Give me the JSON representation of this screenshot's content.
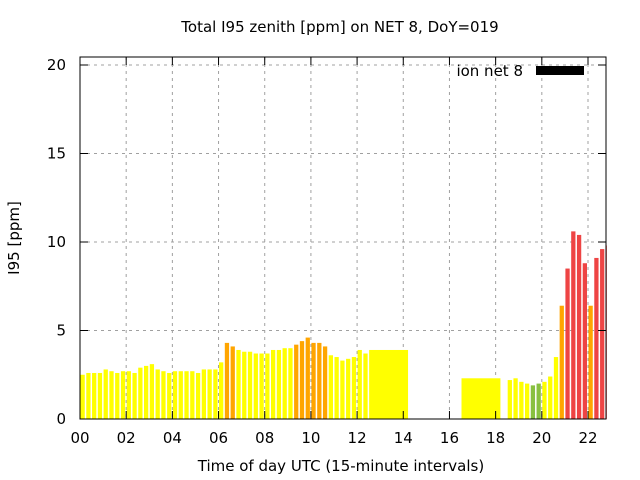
{
  "chart_data": {
    "type": "bar",
    "title": "Total I95 zenith [ppm] on NET 8, DoY=019",
    "xlabel": "Time of day UTC (15-minute intervals)",
    "ylabel": "I95 [ppm]",
    "xlim": [
      0,
      22.75
    ],
    "ylim": [
      0,
      20.5
    ],
    "xticks": [
      "00",
      "02",
      "04",
      "06",
      "08",
      "10",
      "12",
      "14",
      "16",
      "18",
      "20",
      "22"
    ],
    "xtick_values": [
      0,
      2,
      4,
      6,
      8,
      10,
      12,
      14,
      16,
      18,
      20,
      22
    ],
    "yticks": [
      0,
      5,
      10,
      15,
      20
    ],
    "grid": true,
    "legend": {
      "label": "ion net 8",
      "position": "top-right",
      "color": "#000000"
    },
    "colors": {
      "low": "#ffff00",
      "green": "#88c040",
      "medium": "#ffa500",
      "high": "#ee4444"
    },
    "bars": [
      {
        "start": 0.0,
        "width": 0.25,
        "value": 2.5,
        "level": "low"
      },
      {
        "start": 0.25,
        "width": 0.25,
        "value": 2.6,
        "level": "low"
      },
      {
        "start": 0.5,
        "width": 0.25,
        "value": 2.6,
        "level": "low"
      },
      {
        "start": 0.75,
        "width": 0.25,
        "value": 2.6,
        "level": "low"
      },
      {
        "start": 1.0,
        "width": 0.25,
        "value": 2.8,
        "level": "low"
      },
      {
        "start": 1.25,
        "width": 0.25,
        "value": 2.7,
        "level": "low"
      },
      {
        "start": 1.5,
        "width": 0.25,
        "value": 2.6,
        "level": "low"
      },
      {
        "start": 1.75,
        "width": 0.25,
        "value": 2.7,
        "level": "low"
      },
      {
        "start": 2.0,
        "width": 0.25,
        "value": 2.7,
        "level": "low"
      },
      {
        "start": 2.25,
        "width": 0.25,
        "value": 2.6,
        "level": "low"
      },
      {
        "start": 2.5,
        "width": 0.25,
        "value": 2.9,
        "level": "low"
      },
      {
        "start": 2.75,
        "width": 0.25,
        "value": 3.0,
        "level": "low"
      },
      {
        "start": 3.0,
        "width": 0.25,
        "value": 3.1,
        "level": "low"
      },
      {
        "start": 3.25,
        "width": 0.25,
        "value": 2.8,
        "level": "low"
      },
      {
        "start": 3.5,
        "width": 0.25,
        "value": 2.7,
        "level": "low"
      },
      {
        "start": 3.75,
        "width": 0.25,
        "value": 2.6,
        "level": "low"
      },
      {
        "start": 4.0,
        "width": 0.25,
        "value": 2.7,
        "level": "low"
      },
      {
        "start": 4.25,
        "width": 0.25,
        "value": 2.7,
        "level": "low"
      },
      {
        "start": 4.5,
        "width": 0.25,
        "value": 2.7,
        "level": "low"
      },
      {
        "start": 4.75,
        "width": 0.25,
        "value": 2.7,
        "level": "low"
      },
      {
        "start": 5.0,
        "width": 0.25,
        "value": 2.6,
        "level": "low"
      },
      {
        "start": 5.25,
        "width": 0.25,
        "value": 2.8,
        "level": "low"
      },
      {
        "start": 5.5,
        "width": 0.25,
        "value": 2.8,
        "level": "low"
      },
      {
        "start": 5.75,
        "width": 0.25,
        "value": 2.8,
        "level": "low"
      },
      {
        "start": 6.0,
        "width": 0.25,
        "value": 3.2,
        "level": "low"
      },
      {
        "start": 6.25,
        "width": 0.25,
        "value": 4.3,
        "level": "medium"
      },
      {
        "start": 6.5,
        "width": 0.25,
        "value": 4.1,
        "level": "medium"
      },
      {
        "start": 6.75,
        "width": 0.25,
        "value": 3.9,
        "level": "low"
      },
      {
        "start": 7.0,
        "width": 0.25,
        "value": 3.8,
        "level": "low"
      },
      {
        "start": 7.25,
        "width": 0.25,
        "value": 3.8,
        "level": "low"
      },
      {
        "start": 7.5,
        "width": 0.25,
        "value": 3.7,
        "level": "low"
      },
      {
        "start": 7.75,
        "width": 0.25,
        "value": 3.7,
        "level": "low"
      },
      {
        "start": 8.0,
        "width": 0.25,
        "value": 3.7,
        "level": "low"
      },
      {
        "start": 8.25,
        "width": 0.25,
        "value": 3.9,
        "level": "low"
      },
      {
        "start": 8.5,
        "width": 0.25,
        "value": 3.9,
        "level": "low"
      },
      {
        "start": 8.75,
        "width": 0.25,
        "value": 4.0,
        "level": "low"
      },
      {
        "start": 9.0,
        "width": 0.25,
        "value": 4.0,
        "level": "low"
      },
      {
        "start": 9.25,
        "width": 0.25,
        "value": 4.2,
        "level": "medium"
      },
      {
        "start": 9.5,
        "width": 0.25,
        "value": 4.4,
        "level": "medium"
      },
      {
        "start": 9.75,
        "width": 0.25,
        "value": 4.6,
        "level": "medium"
      },
      {
        "start": 10.0,
        "width": 0.25,
        "value": 4.3,
        "level": "medium"
      },
      {
        "start": 10.25,
        "width": 0.25,
        "value": 4.3,
        "level": "medium"
      },
      {
        "start": 10.5,
        "width": 0.25,
        "value": 4.1,
        "level": "medium"
      },
      {
        "start": 10.75,
        "width": 0.25,
        "value": 3.6,
        "level": "low"
      },
      {
        "start": 11.0,
        "width": 0.25,
        "value": 3.5,
        "level": "low"
      },
      {
        "start": 11.25,
        "width": 0.25,
        "value": 3.3,
        "level": "low"
      },
      {
        "start": 11.5,
        "width": 0.25,
        "value": 3.4,
        "level": "low"
      },
      {
        "start": 11.75,
        "width": 0.25,
        "value": 3.5,
        "level": "low"
      },
      {
        "start": 12.0,
        "width": 0.25,
        "value": 3.9,
        "level": "low"
      },
      {
        "start": 12.25,
        "width": 0.25,
        "value": 3.7,
        "level": "low"
      },
      {
        "start": 12.5,
        "width": 1.75,
        "value": 3.9,
        "level": "low"
      },
      {
        "start": 16.5,
        "width": 1.75,
        "value": 2.3,
        "level": "low"
      },
      {
        "start": 18.5,
        "width": 0.25,
        "value": 2.2,
        "level": "low"
      },
      {
        "start": 18.75,
        "width": 0.25,
        "value": 2.3,
        "level": "low"
      },
      {
        "start": 19.0,
        "width": 0.25,
        "value": 2.1,
        "level": "low"
      },
      {
        "start": 19.25,
        "width": 0.25,
        "value": 2.0,
        "level": "low"
      },
      {
        "start": 19.5,
        "width": 0.25,
        "value": 1.9,
        "level": "green"
      },
      {
        "start": 19.75,
        "width": 0.25,
        "value": 2.0,
        "level": "green"
      },
      {
        "start": 20.0,
        "width": 0.25,
        "value": 2.1,
        "level": "low"
      },
      {
        "start": 20.25,
        "width": 0.25,
        "value": 2.4,
        "level": "low"
      },
      {
        "start": 20.5,
        "width": 0.25,
        "value": 3.5,
        "level": "low"
      },
      {
        "start": 20.75,
        "width": 0.25,
        "value": 6.4,
        "level": "medium"
      },
      {
        "start": 21.0,
        "width": 0.25,
        "value": 8.5,
        "level": "high"
      },
      {
        "start": 21.25,
        "width": 0.25,
        "value": 10.6,
        "level": "high"
      },
      {
        "start": 21.5,
        "width": 0.25,
        "value": 10.4,
        "level": "high"
      },
      {
        "start": 21.75,
        "width": 0.25,
        "value": 8.8,
        "level": "high"
      },
      {
        "start": 22.0,
        "width": 0.25,
        "value": 6.4,
        "level": "medium"
      },
      {
        "start": 22.25,
        "width": 0.25,
        "value": 9.1,
        "level": "high"
      },
      {
        "start": 22.5,
        "width": 0.25,
        "value": 9.6,
        "level": "high"
      },
      {
        "start": 22.75,
        "width": 0.25,
        "value": 9.8,
        "level": "high"
      }
    ]
  }
}
